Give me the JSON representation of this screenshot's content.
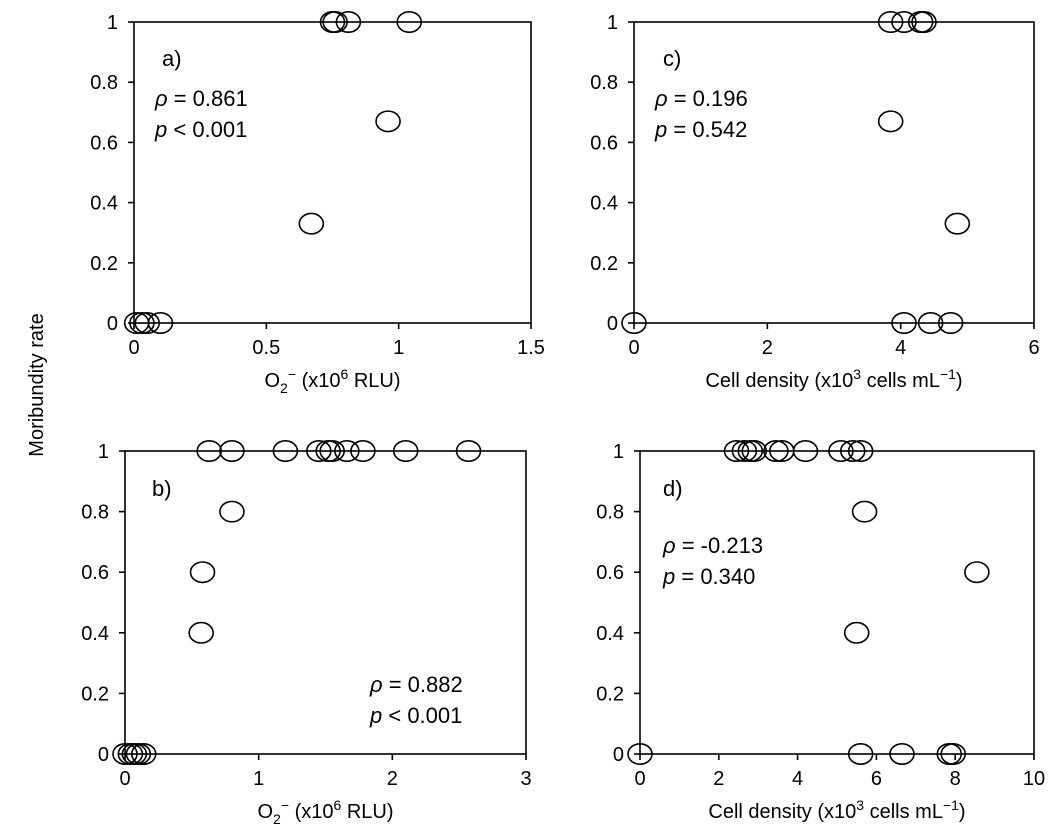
{
  "figure": {
    "shared_ylabel": "Moribundity rate"
  },
  "chart_data": [
    {
      "id": "a",
      "type": "scatter",
      "panel_label": "a)",
      "xlabel": {
        "base": "O",
        "sub": "2",
        "sup": "−",
        "rest": " (x10",
        "exp": "6",
        "tail": " RLU)"
      },
      "xlim": [
        0,
        1.5
      ],
      "ylim": [
        0,
        1
      ],
      "xticks": [
        "0",
        "0.5",
        "1",
        "1.5"
      ],
      "xtick_values": [
        0,
        0.5,
        1,
        1.5
      ],
      "yticks": [
        "0",
        "0.2",
        "0.4",
        "0.6",
        "0.8",
        "1"
      ],
      "ytick_values": [
        0,
        0.2,
        0.4,
        0.6,
        0.8,
        1
      ],
      "annotation": {
        "rho_symbol": "ρ",
        "rho_text": " = 0.861",
        "p_symbol": "p",
        "p_text": " < 0.001",
        "position": "top-left"
      },
      "points": [
        {
          "x": 0.01,
          "y": 0
        },
        {
          "x": 0.03,
          "y": 0
        },
        {
          "x": 0.05,
          "y": 0
        },
        {
          "x": 0.1,
          "y": 0
        },
        {
          "x": 0.75,
          "y": 1
        },
        {
          "x": 0.76,
          "y": 1
        },
        {
          "x": 0.81,
          "y": 1
        },
        {
          "x": 1.04,
          "y": 1
        },
        {
          "x": 0.96,
          "y": 0.67
        },
        {
          "x": 0.67,
          "y": 0.33
        }
      ]
    },
    {
      "id": "c",
      "type": "scatter",
      "panel_label": "c)",
      "xlabel": {
        "base": "Cell density (x10",
        "exp": "3",
        "rest": " cells mL",
        "sup2": "−1",
        "tail": ")"
      },
      "xlim": [
        0,
        6
      ],
      "ylim": [
        0,
        1
      ],
      "xticks": [
        "0",
        "2",
        "4",
        "6"
      ],
      "xtick_values": [
        0,
        2,
        4,
        6
      ],
      "yticks": [
        "0",
        "0.2",
        "0.4",
        "0.6",
        "0.8",
        "1"
      ],
      "ytick_values": [
        0,
        0.2,
        0.4,
        0.6,
        0.8,
        1
      ],
      "annotation": {
        "rho_symbol": "ρ",
        "rho_text": " = 0.196",
        "p_symbol": "p",
        "p_text": " = 0.542",
        "position": "top-left"
      },
      "points": [
        {
          "x": 0,
          "y": 0
        },
        {
          "x": 3.85,
          "y": 1
        },
        {
          "x": 4.05,
          "y": 1
        },
        {
          "x": 4.3,
          "y": 1
        },
        {
          "x": 4.35,
          "y": 1
        },
        {
          "x": 3.85,
          "y": 0.67
        },
        {
          "x": 4.85,
          "y": 0.33
        },
        {
          "x": 4.05,
          "y": 0
        },
        {
          "x": 4.45,
          "y": 0
        },
        {
          "x": 4.75,
          "y": 0
        }
      ]
    },
    {
      "id": "b",
      "type": "scatter",
      "panel_label": "b)",
      "xlabel": {
        "base": "O",
        "sub": "2",
        "sup": "−",
        "rest": " (x10",
        "exp": "6",
        "tail": " RLU)"
      },
      "xlim": [
        0,
        3
      ],
      "ylim": [
        0,
        1
      ],
      "xticks": [
        "0",
        "1",
        "2",
        "3"
      ],
      "xtick_values": [
        0,
        1,
        2,
        3
      ],
      "yticks": [
        "0",
        "0.2",
        "0.4",
        "0.6",
        "0.8",
        "1"
      ],
      "ytick_values": [
        0,
        0.2,
        0.4,
        0.6,
        0.8,
        1
      ],
      "annotation": {
        "rho_symbol": "ρ",
        "rho_text": " = 0.882",
        "p_symbol": "p",
        "p_text": " < 0.001",
        "position": "bottom-right"
      },
      "points": [
        {
          "x": 0.0,
          "y": 0
        },
        {
          "x": 0.04,
          "y": 0
        },
        {
          "x": 0.07,
          "y": 0
        },
        {
          "x": 0.1,
          "y": 0
        },
        {
          "x": 0.14,
          "y": 0
        },
        {
          "x": 0.63,
          "y": 1
        },
        {
          "x": 0.8,
          "y": 1
        },
        {
          "x": 1.2,
          "y": 1
        },
        {
          "x": 1.45,
          "y": 1
        },
        {
          "x": 1.52,
          "y": 1
        },
        {
          "x": 1.55,
          "y": 1
        },
        {
          "x": 1.66,
          "y": 1
        },
        {
          "x": 1.78,
          "y": 1
        },
        {
          "x": 2.1,
          "y": 1
        },
        {
          "x": 2.57,
          "y": 1
        },
        {
          "x": 0.8,
          "y": 0.8
        },
        {
          "x": 0.58,
          "y": 0.6
        },
        {
          "x": 0.57,
          "y": 0.4
        }
      ]
    },
    {
      "id": "d",
      "type": "scatter",
      "panel_label": "d)",
      "xlabel": {
        "base": "Cell density (x10",
        "exp": "3",
        "rest": " cells mL",
        "sup2": "−1",
        "tail": ")"
      },
      "xlim": [
        0,
        10
      ],
      "ylim": [
        0,
        1
      ],
      "xticks": [
        "0",
        "2",
        "4",
        "6",
        "8",
        "10"
      ],
      "xtick_values": [
        0,
        2,
        4,
        6,
        8,
        10
      ],
      "yticks": [
        "0",
        "0.2",
        "0.4",
        "0.6",
        "0.8",
        "1"
      ],
      "ytick_values": [
        0,
        0.2,
        0.4,
        0.6,
        0.8,
        1
      ],
      "annotation": {
        "rho_symbol": "ρ",
        "rho_text": " = -0.213",
        "p_symbol": "p",
        "p_text": " = 0.340",
        "position": "top-left"
      },
      "points": [
        {
          "x": 0,
          "y": 0
        },
        {
          "x": 2.45,
          "y": 1
        },
        {
          "x": 2.65,
          "y": 1
        },
        {
          "x": 2.8,
          "y": 1
        },
        {
          "x": 2.9,
          "y": 1
        },
        {
          "x": 3.45,
          "y": 1
        },
        {
          "x": 3.6,
          "y": 1
        },
        {
          "x": 4.2,
          "y": 1
        },
        {
          "x": 5.1,
          "y": 1
        },
        {
          "x": 5.4,
          "y": 1
        },
        {
          "x": 5.6,
          "y": 1
        },
        {
          "x": 5.7,
          "y": 0.8
        },
        {
          "x": 8.55,
          "y": 0.6
        },
        {
          "x": 5.5,
          "y": 0.4
        },
        {
          "x": 5.6,
          "y": 0
        },
        {
          "x": 6.65,
          "y": 0
        },
        {
          "x": 7.85,
          "y": 0
        },
        {
          "x": 7.95,
          "y": 0
        }
      ]
    }
  ]
}
